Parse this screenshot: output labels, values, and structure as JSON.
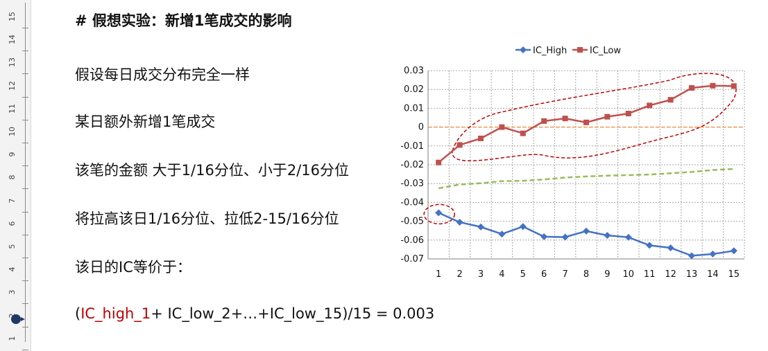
{
  "ruler": {
    "numbers": [
      "15",
      "14",
      "13",
      "12",
      "11",
      "10",
      "9",
      "8",
      "7",
      "6",
      "5",
      "4",
      "3",
      "2",
      "1"
    ]
  },
  "heading": "# 假想实验：新增1笔成交的影响",
  "lines": [
    "假设每日成交分布完全一样",
    "某日额外新增1笔成交",
    "该笔的金额 大于1/16分位、小于2/16分位",
    "将拉高该日1/16分位、拉低2-15/16分位",
    "该日的IC等价于："
  ],
  "formula": {
    "open": "(",
    "red_part": "IC_high_1",
    "rest": "+ IC_low_2+…+IC_low_15)/15 = 0.003"
  },
  "chart_data": {
    "type": "line",
    "categories": [
      1,
      2,
      3,
      4,
      5,
      6,
      7,
      8,
      9,
      10,
      11,
      12,
      13,
      14,
      15
    ],
    "ylim": [
      -0.07,
      0.03
    ],
    "yticks": [
      "0.03",
      "0.02",
      "0.01",
      "0",
      "-0.01",
      "-0.02",
      "-0.03",
      "-0.04",
      "-0.05",
      "-0.06",
      "-0.07"
    ],
    "series": [
      {
        "name": "IC_High",
        "color": "#4472c4",
        "marker": "diamond",
        "values": [
          -0.0455,
          -0.0505,
          -0.053,
          -0.0568,
          -0.0528,
          -0.0582,
          -0.0584,
          -0.0552,
          -0.0575,
          -0.0585,
          -0.0628,
          -0.0641,
          -0.0683,
          -0.0674,
          -0.0657
        ]
      },
      {
        "name": "IC_Low",
        "color": "#c0504d",
        "marker": "square",
        "values": [
          -0.0188,
          -0.0095,
          -0.006,
          0.0,
          -0.0033,
          0.0032,
          0.0046,
          0.0025,
          0.0055,
          0.0072,
          0.0115,
          0.0145,
          0.0208,
          0.022,
          0.0218
        ]
      }
    ],
    "trend_color": "#9bbb59",
    "trend_values": [
      -0.0325,
      -0.0305,
      -0.0298,
      -0.0287,
      -0.0285,
      -0.0278,
      -0.0268,
      -0.0262,
      -0.0258,
      -0.0255,
      -0.0252,
      -0.0245,
      -0.0238,
      -0.0228,
      -0.0222
    ],
    "zero_line_color": "#f79646",
    "legend_position": "top",
    "grid": true,
    "annotation_color": "#c00000"
  }
}
